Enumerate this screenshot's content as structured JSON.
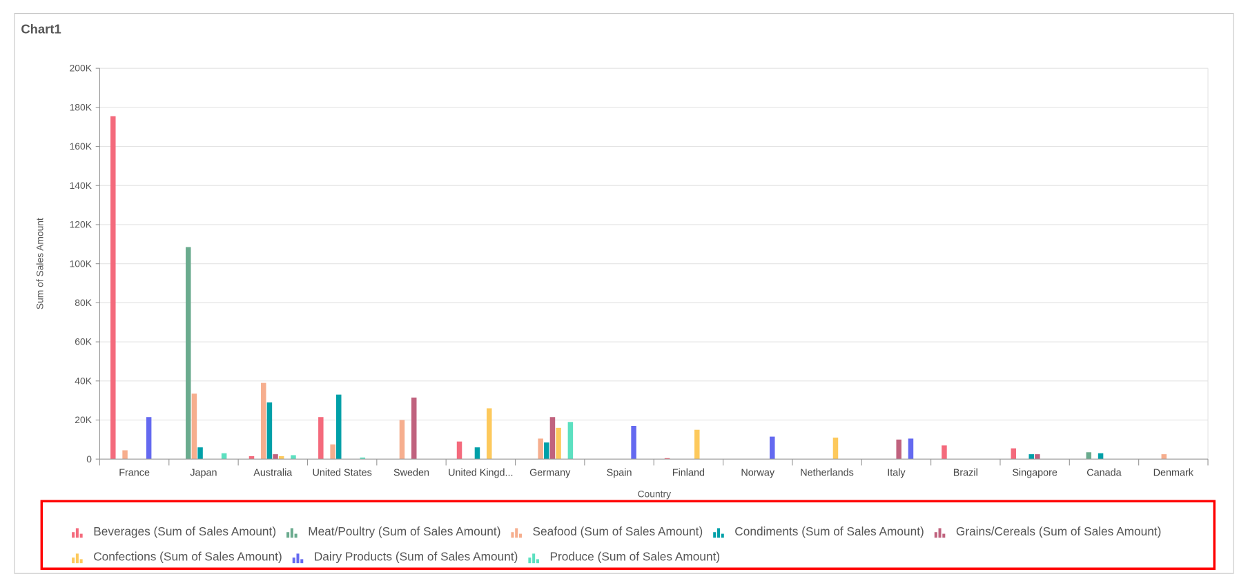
{
  "chart_data": {
    "type": "bar",
    "title": "Chart1",
    "x_label": "Country",
    "y_label": "Sum of Sales Amount",
    "categories": [
      "France",
      "Japan",
      "Australia",
      "United States",
      "Sweden",
      "United Kingd...",
      "Germany",
      "Spain",
      "Finland",
      "Norway",
      "Netherlands",
      "Italy",
      "Brazil",
      "Singapore",
      "Canada",
      "Denmark"
    ],
    "series": [
      {
        "name": "Beverages (Sum of Sales Amount)",
        "color": "#f46a7c",
        "values": [
          175500,
          0,
          1500,
          21500,
          0,
          9000,
          0,
          0,
          500,
          0,
          0,
          0,
          7000,
          5500,
          0,
          0
        ]
      },
      {
        "name": "Meat/Poultry (Sum of Sales Amount)",
        "color": "#6aab8e",
        "values": [
          0,
          108500,
          0,
          0,
          0,
          0,
          0,
          0,
          0,
          0,
          0,
          0,
          0,
          0,
          3500,
          0
        ]
      },
      {
        "name": "Seafood (Sum of Sales Amount)",
        "color": "#f6ae8e",
        "values": [
          4500,
          33500,
          39000,
          7500,
          20000,
          0,
          10500,
          0,
          0,
          0,
          0,
          0,
          0,
          0,
          0,
          2500
        ]
      },
      {
        "name": "Condiments (Sum of Sales Amount)",
        "color": "#00a0a8",
        "values": [
          0,
          6000,
          29000,
          33000,
          0,
          6000,
          8500,
          0,
          0,
          0,
          0,
          0,
          0,
          2500,
          3000,
          0
        ]
      },
      {
        "name": "Grains/Cereals (Sum of Sales Amount)",
        "color": "#c0627e",
        "values": [
          0,
          0,
          2500,
          0,
          31500,
          0,
          21500,
          0,
          0,
          0,
          0,
          10000,
          0,
          2500,
          0,
          0
        ]
      },
      {
        "name": "Confections (Sum of Sales Amount)",
        "color": "#fdc95c",
        "values": [
          0,
          0,
          1500,
          0,
          0,
          26000,
          16000,
          0,
          15000,
          0,
          11000,
          0,
          0,
          0,
          0,
          0
        ]
      },
      {
        "name": "Dairy Products (Sum of Sales Amount)",
        "color": "#6469f0",
        "values": [
          21500,
          0,
          0,
          0,
          0,
          0,
          0,
          17000,
          0,
          11500,
          0,
          10500,
          0,
          0,
          0,
          0
        ]
      },
      {
        "name": "Produce (Sum of Sales Amount)",
        "color": "#5ce0c0",
        "values": [
          0,
          3000,
          2000,
          800,
          0,
          0,
          19000,
          0,
          0,
          0,
          0,
          0,
          0,
          0,
          0,
          0
        ]
      }
    ],
    "ylim": [
      0,
      200000
    ],
    "yticks": [
      0,
      {
        "value": 20000,
        "label": "20K"
      },
      {
        "value": 40000,
        "label": "40K"
      },
      {
        "value": 60000,
        "label": "60K"
      },
      {
        "value": 80000,
        "label": "80K"
      },
      {
        "value": 100000,
        "label": "100K"
      },
      {
        "value": 120000,
        "label": "120K"
      },
      {
        "value": 140000,
        "label": "140K"
      },
      {
        "value": 160000,
        "label": "160K"
      },
      {
        "value": 180000,
        "label": "180K"
      },
      {
        "value": 200000,
        "label": "200K"
      }
    ],
    "grid": true
  }
}
